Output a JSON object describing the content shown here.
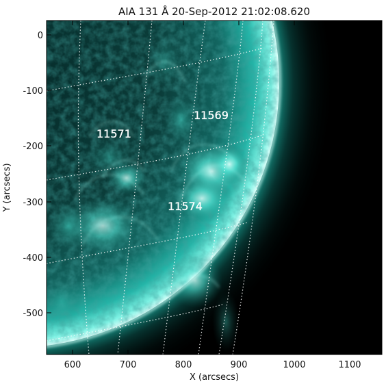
{
  "title": "AIA 131 Å 20-Sep-2012 21:02:08.620",
  "x_axis": {
    "label": "X (arcsecs)",
    "ticks": [
      "600",
      "700",
      "800",
      "900",
      "1000",
      "1100"
    ]
  },
  "y_axis": {
    "label": "Y (arcsecs)",
    "ticks": [
      "0",
      "-100",
      "-200",
      "-300",
      "-400",
      "-500"
    ]
  },
  "annotations": {
    "region_a": "11569",
    "region_b": "11571",
    "region_c": "11574"
  },
  "colors": {
    "plasma": "#2fd9c8",
    "plasma_bright": "#c9fff7",
    "background_space": "#000000",
    "grid_line": "#ffffff"
  }
}
